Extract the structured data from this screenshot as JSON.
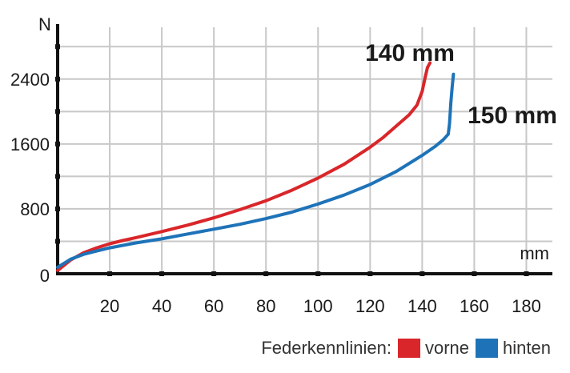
{
  "chart_data": {
    "type": "line",
    "xlabel": "mm",
    "ylabel": "N",
    "xlim": [
      0,
      190
    ],
    "ylim": [
      0,
      3000
    ],
    "x_ticks": [
      20,
      40,
      60,
      80,
      100,
      120,
      140,
      160,
      180
    ],
    "y_ticks": [
      0,
      800,
      1600,
      2400
    ],
    "x_minor_grid": [
      0,
      20,
      40,
      60,
      80,
      100,
      120,
      140,
      160,
      180
    ],
    "y_grid": [
      400,
      800,
      1200,
      1600,
      2000,
      2400,
      2800
    ],
    "grid": true,
    "legend_title": "Federkennlinien:",
    "legend_position": "bottom-right",
    "series": [
      {
        "name": "vorne",
        "color": "#d9262a",
        "annotation": "140 mm",
        "points": [
          [
            0,
            40
          ],
          [
            5,
            170
          ],
          [
            10,
            260
          ],
          [
            15,
            320
          ],
          [
            20,
            370
          ],
          [
            25,
            410
          ],
          [
            30,
            445
          ],
          [
            40,
            520
          ],
          [
            50,
            600
          ],
          [
            60,
            690
          ],
          [
            70,
            790
          ],
          [
            80,
            900
          ],
          [
            90,
            1030
          ],
          [
            100,
            1180
          ],
          [
            110,
            1350
          ],
          [
            120,
            1560
          ],
          [
            125,
            1680
          ],
          [
            130,
            1820
          ],
          [
            135,
            1960
          ],
          [
            138,
            2080
          ],
          [
            140,
            2250
          ],
          [
            141,
            2400
          ],
          [
            142,
            2540
          ],
          [
            143,
            2600
          ]
        ]
      },
      {
        "name": "hinten",
        "color": "#1e73b8",
        "annotation": "150 mm",
        "points": [
          [
            0,
            80
          ],
          [
            5,
            180
          ],
          [
            10,
            240
          ],
          [
            15,
            280
          ],
          [
            20,
            320
          ],
          [
            30,
            380
          ],
          [
            40,
            430
          ],
          [
            50,
            490
          ],
          [
            60,
            550
          ],
          [
            70,
            610
          ],
          [
            80,
            680
          ],
          [
            90,
            760
          ],
          [
            100,
            860
          ],
          [
            110,
            970
          ],
          [
            120,
            1100
          ],
          [
            130,
            1260
          ],
          [
            140,
            1460
          ],
          [
            145,
            1570
          ],
          [
            148,
            1650
          ],
          [
            150,
            1720
          ],
          [
            150.5,
            1850
          ],
          [
            151,
            2100
          ],
          [
            151.5,
            2300
          ],
          [
            152,
            2460
          ]
        ]
      }
    ]
  }
}
